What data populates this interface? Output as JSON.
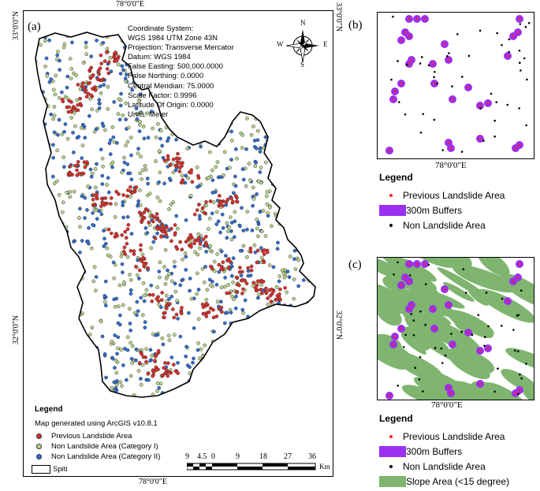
{
  "panel_a": {
    "letter": "(a)",
    "top_lon_label": "78°0'0\"E",
    "bottom_lon_label": "78°0'0\"E",
    "lat_top_right": "33°0'0\"N",
    "lat_top_left": "33°0'0\"N",
    "lat_mid_left": "32°0'0\"N",
    "lat_mid_right": "32°0'0\"N",
    "coordinate_info": [
      "Coordinate System:",
      "WGS 1984 UTM Zone 43N",
      "Projection: Transverse Mercator",
      "Datum: WGS 1984",
      "False Easting: 500,000.0000",
      "False Northing: 0.0000",
      "Central Meridian: 75.0000",
      "Scale Factor: 0.9996",
      "Latitude Of Origin: 0.0000",
      "Units: Meter"
    ],
    "compass": {
      "n": "N",
      "s": "S",
      "e": "E",
      "w": "W"
    },
    "legend": {
      "title": "Legend",
      "subtitle": "Map generated using ArcGIS v10.8.1",
      "items": [
        {
          "label": "Previous Landslide Area",
          "color": "#e0302a"
        },
        {
          "label": "Non Landslide Area (Category I)",
          "color": "#b9d68c"
        },
        {
          "label": "Non Landslide Area (Category II)",
          "color": "#2e6fd6"
        },
        {
          "label": "Spiti",
          "color": "#ffffff"
        }
      ]
    },
    "scalebar": {
      "labels": [
        "9",
        "4.5",
        "0",
        "9",
        "18",
        "27",
        "36"
      ],
      "unit": "Km"
    },
    "colors": {
      "landslide": "#e0302a",
      "cat1": "#b9d68c",
      "cat2": "#2e6fd6"
    }
  },
  "panel_b": {
    "letter": "(b)",
    "lon_label": "78°0'0\"E",
    "legend": {
      "title": "Legend",
      "items": [
        {
          "label": "Previous Landslide Area",
          "color": "#ff2020"
        },
        {
          "label": "300m Buffers",
          "color": "#9b30f0"
        },
        {
          "label": "Non Landslide Area",
          "color": "#000000"
        }
      ]
    }
  },
  "panel_c": {
    "letter": "(c)",
    "lon_label": "78°0'0\"E",
    "legend": {
      "title": "Legend",
      "items": [
        {
          "label": "Previous Landslide Area",
          "color": "#ff2020"
        },
        {
          "label": "300m Buffers",
          "color": "#9b30f0"
        },
        {
          "label": "Non Landslide Area",
          "color": "#000000"
        },
        {
          "label": "Slope Area (<15 degree)",
          "color": "#7fb56f"
        }
      ]
    }
  }
}
